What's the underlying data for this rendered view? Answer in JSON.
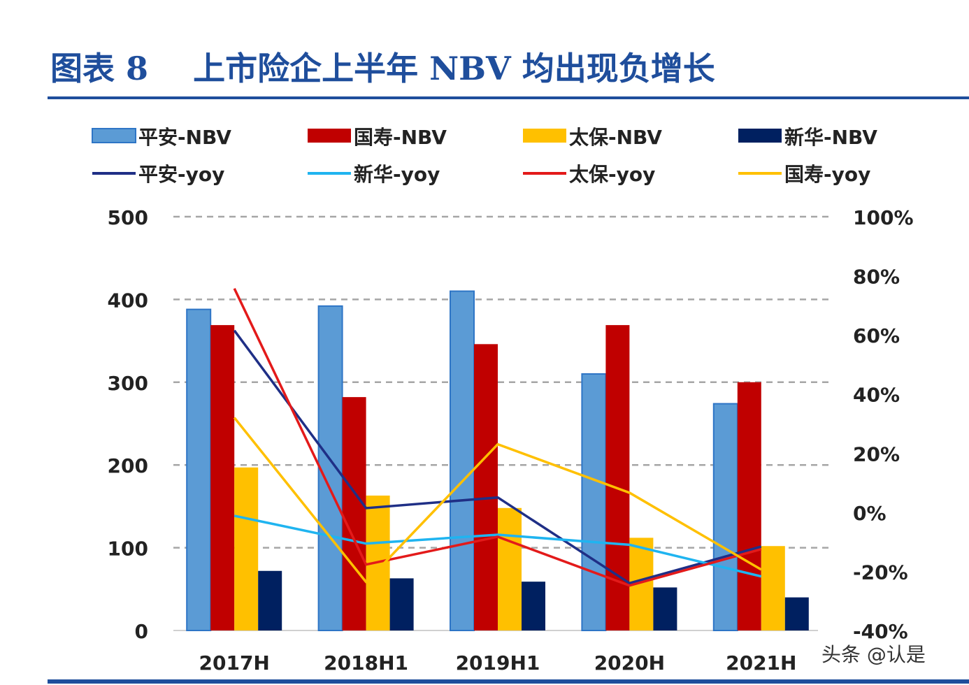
{
  "title": "图表 8    上市险企上半年 NBV 均出现负增长",
  "watermark": "头条 @认是",
  "chart_data": {
    "type": "bar+line",
    "categories": [
      "2017H",
      "2018H1",
      "2019H1",
      "2020H",
      "2021H"
    ],
    "bar_series": [
      {
        "name": "平安-NBV",
        "color": "#5b9bd5",
        "values": [
          388,
          392,
          410,
          310,
          274
        ]
      },
      {
        "name": "国寿-NBV",
        "color": "#c00000",
        "values": [
          369,
          282,
          346,
          369,
          300
        ]
      },
      {
        "name": "太保-NBV",
        "color": "#ffc000",
        "values": [
          197,
          163,
          148,
          112,
          102
        ]
      },
      {
        "name": "新华-NBV",
        "color": "#002060",
        "values": [
          72,
          63,
          59,
          52,
          40
        ]
      }
    ],
    "line_series": [
      {
        "name": "平安-yoy",
        "color": "#1f2f86",
        "values": [
          61.5,
          1.4,
          5.0,
          -24.0,
          -11.6
        ]
      },
      {
        "name": "新华-yoy",
        "color": "#1fb4f0",
        "values": [
          -1.2,
          -10.6,
          -7.6,
          -11.0,
          -21.7
        ]
      },
      {
        "name": "太保-yoy",
        "color": "#e31a1a",
        "values": [
          75.7,
          -17.7,
          -8.3,
          -24.8,
          -12.5
        ]
      },
      {
        "name": "国寿-yoy",
        "color": "#ffc000",
        "values": [
          32.0,
          -23.6,
          23.0,
          6.6,
          -19.4
        ]
      }
    ],
    "y_left": {
      "ticks": [
        "0",
        "100",
        "200",
        "300",
        "400",
        "500"
      ],
      "range": [
        0,
        500
      ]
    },
    "y_right": {
      "ticks": [
        "-40%",
        "-20%",
        "0%",
        "20%",
        "40%",
        "60%",
        "80%",
        "100%"
      ],
      "range": [
        -40,
        100
      ]
    },
    "grid": true,
    "legend": "top"
  }
}
